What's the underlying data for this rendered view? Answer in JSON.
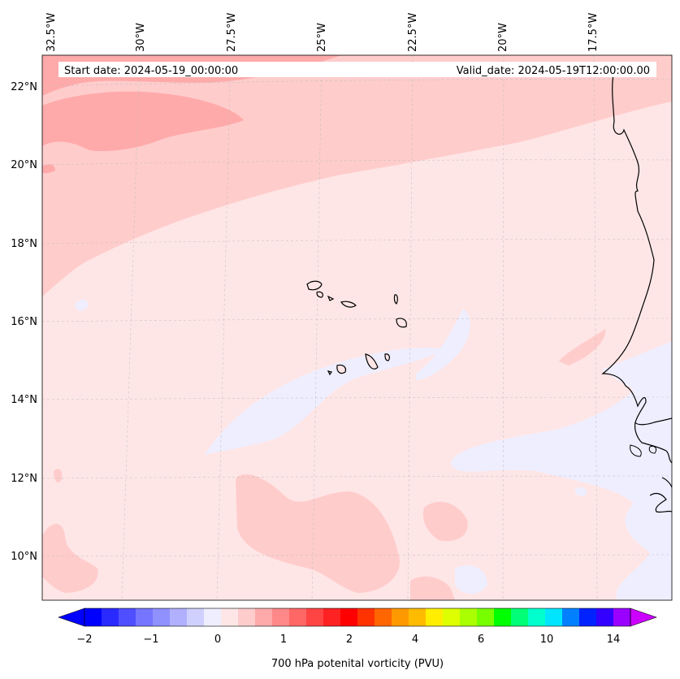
{
  "header": {
    "start_date": "Start date: 2024-05-19_00:00:00",
    "valid_date": "Valid_date: 2024-05-19T12:00:00.00"
  },
  "longitude_labels": [
    "32.5°W",
    "30°W",
    "27.5°W",
    "25°W",
    "22.5°W",
    "20°W",
    "17.5°W"
  ],
  "latitude_labels": [
    "22°N",
    "20°N",
    "18°N",
    "16°N",
    "14°N",
    "12°N",
    "10°N"
  ],
  "colorbar": {
    "label": "700 hPa potenital vorticity (PVU)",
    "tick_labels": [
      "−2",
      "−1",
      "0",
      "1",
      "2",
      "4",
      "6",
      "10",
      "14"
    ],
    "colors": [
      "#0000ff",
      "#2a2aff",
      "#4f4fff",
      "#7575ff",
      "#9090ff",
      "#b0b0ff",
      "#d0d0ff",
      "#eeeeff",
      "#ffe6e6",
      "#ffcccc",
      "#ffaaaa",
      "#ff8888",
      "#ff6666",
      "#ff4444",
      "#ff2222",
      "#ff0000",
      "#ff3300",
      "#ff6600",
      "#ff9900",
      "#ffbb00",
      "#ffee00",
      "#ddff00",
      "#aaff00",
      "#77ff00",
      "#00ff00",
      "#00ff77",
      "#00ffcc",
      "#00e5ff",
      "#0080ff",
      "#0022ff",
      "#3300ff",
      "#9900ff"
    ],
    "under_color": "#0000ff",
    "over_color": "#cc00ff"
  }
}
